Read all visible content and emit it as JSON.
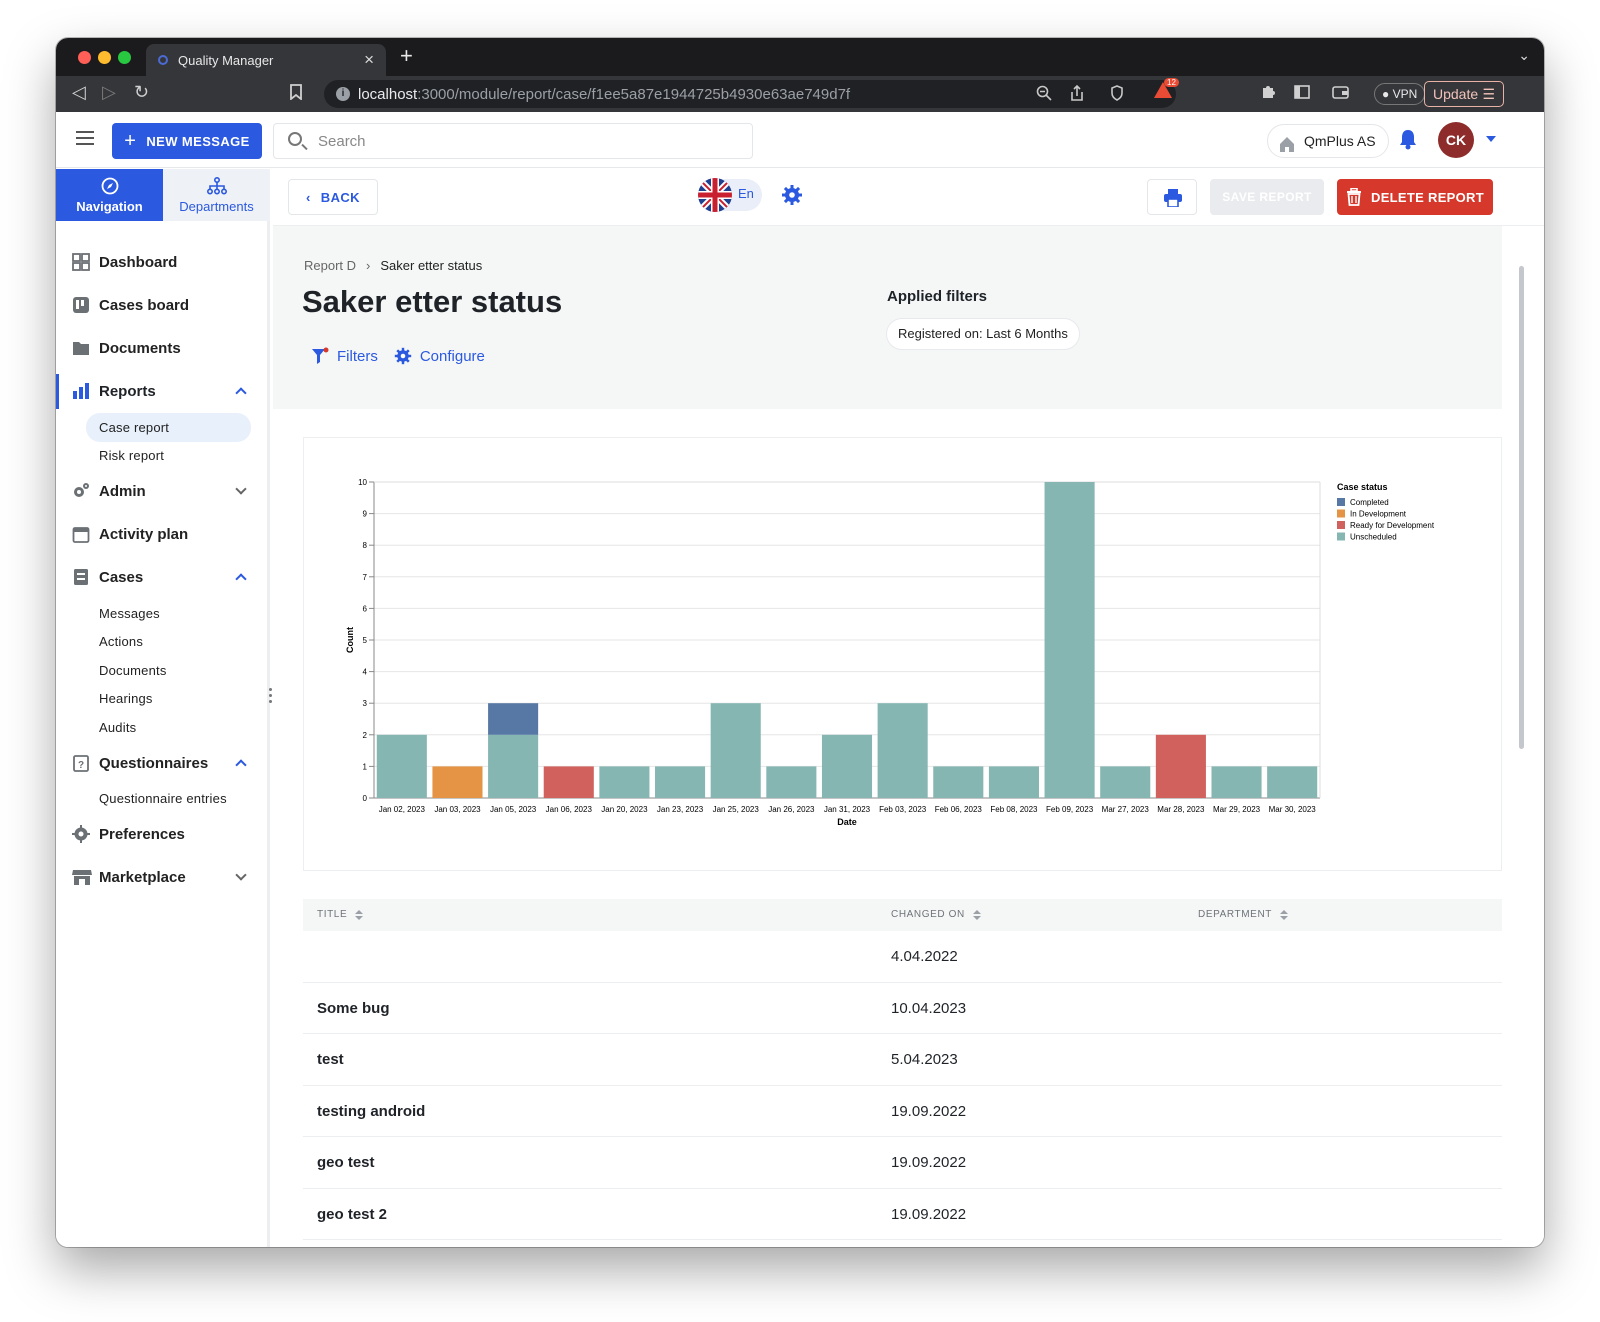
{
  "browser": {
    "tab_title": "Quality Manager",
    "url_host": "localhost",
    "url_path": ":3000/module/report/case/f1ee5a87e1944725b4930e63ae749d7f",
    "shield_count": "12",
    "vpn_label": "VPN",
    "update_label": "Update"
  },
  "header": {
    "new_message_label": "NEW MESSAGE",
    "search_placeholder": "Search",
    "company": "QmPlus AS",
    "avatar_initials": "CK"
  },
  "sidebar": {
    "tabs": [
      {
        "label": "Navigation",
        "active": true
      },
      {
        "label": "Departments",
        "active": false
      }
    ],
    "items": [
      {
        "label": "Dashboard"
      },
      {
        "label": "Cases board"
      },
      {
        "label": "Documents"
      },
      {
        "label": "Reports",
        "expanded": true,
        "children": [
          "Case report",
          "Risk report"
        ]
      },
      {
        "label": "Admin",
        "expanded": false
      },
      {
        "label": "Activity plan"
      },
      {
        "label": "Cases",
        "expanded": true,
        "children": [
          "Messages",
          "Actions",
          "Documents",
          "Hearings",
          "Audits"
        ]
      },
      {
        "label": "Questionnaires",
        "expanded": true,
        "children": [
          "Questionnaire entries"
        ]
      },
      {
        "label": "Preferences"
      },
      {
        "label": "Marketplace",
        "expanded": false
      }
    ],
    "selected_child": "Case report"
  },
  "toolbar": {
    "back_label": "BACK",
    "language": "En",
    "save_label": "SAVE REPORT",
    "delete_label": "DELETE REPORT"
  },
  "report": {
    "breadcrumb": [
      "Report D",
      "Saker etter status"
    ],
    "title": "Saker etter status",
    "filters_label": "Filters",
    "configure_label": "Configure",
    "applied_filters_title": "Applied filters",
    "applied_filter_chip": "Registered on: Last 6 Months"
  },
  "chart_data": {
    "type": "bar",
    "stacked": true,
    "xlabel": "Date",
    "ylabel": "Count",
    "ylim": [
      0,
      10
    ],
    "yticks": [
      0,
      1,
      2,
      3,
      4,
      5,
      6,
      7,
      8,
      9,
      10
    ],
    "legend_title": "Case status",
    "legend_position": "top-right",
    "grid": true,
    "categories": [
      "Jan 02, 2023",
      "Jan 03, 2023",
      "Jan 05, 2023",
      "Jan 06, 2023",
      "Jan 20, 2023",
      "Jan 23, 2023",
      "Jan 25, 2023",
      "Jan 26, 2023",
      "Jan 31, 2023",
      "Feb 03, 2023",
      "Feb 06, 2023",
      "Feb 08, 2023",
      "Feb 09, 2023",
      "Mar 27, 2023",
      "Mar 28, 2023",
      "Mar 29, 2023",
      "Mar 30, 2023"
    ],
    "series": [
      {
        "name": "Completed",
        "color": "#5778a4",
        "values": [
          0,
          0,
          1,
          0,
          0,
          0,
          0,
          0,
          0,
          0,
          0,
          0,
          0,
          0,
          0,
          0,
          0
        ]
      },
      {
        "name": "In Development",
        "color": "#e49444",
        "values": [
          0,
          1,
          0,
          0,
          0,
          0,
          0,
          0,
          0,
          0,
          0,
          0,
          0,
          0,
          0,
          0,
          0
        ]
      },
      {
        "name": "Ready for Development",
        "color": "#d1615d",
        "values": [
          0,
          0,
          0,
          1,
          0,
          0,
          0,
          0,
          0,
          0,
          0,
          0,
          0,
          0,
          2,
          0,
          0
        ]
      },
      {
        "name": "Unscheduled",
        "color": "#85b6b2",
        "values": [
          2,
          0,
          2,
          0,
          1,
          1,
          3,
          1,
          2,
          3,
          1,
          1,
          10,
          1,
          0,
          1,
          1
        ]
      }
    ]
  },
  "table": {
    "columns": [
      "TITLE",
      "CHANGED ON",
      "DEPARTMENT"
    ],
    "rows": [
      {
        "title": "",
        "changed_on": "4.04.2022",
        "department": ""
      },
      {
        "title": "Some bug",
        "changed_on": "10.04.2023",
        "department": ""
      },
      {
        "title": "test",
        "changed_on": "5.04.2023",
        "department": ""
      },
      {
        "title": "testing android",
        "changed_on": "19.09.2022",
        "department": ""
      },
      {
        "title": "geo test",
        "changed_on": "19.09.2022",
        "department": ""
      },
      {
        "title": "geo test 2",
        "changed_on": "19.09.2022",
        "department": ""
      }
    ]
  },
  "colors": {
    "accent": "#2b59df",
    "danger": "#d6382b",
    "avatar": "#8e2b2b"
  }
}
